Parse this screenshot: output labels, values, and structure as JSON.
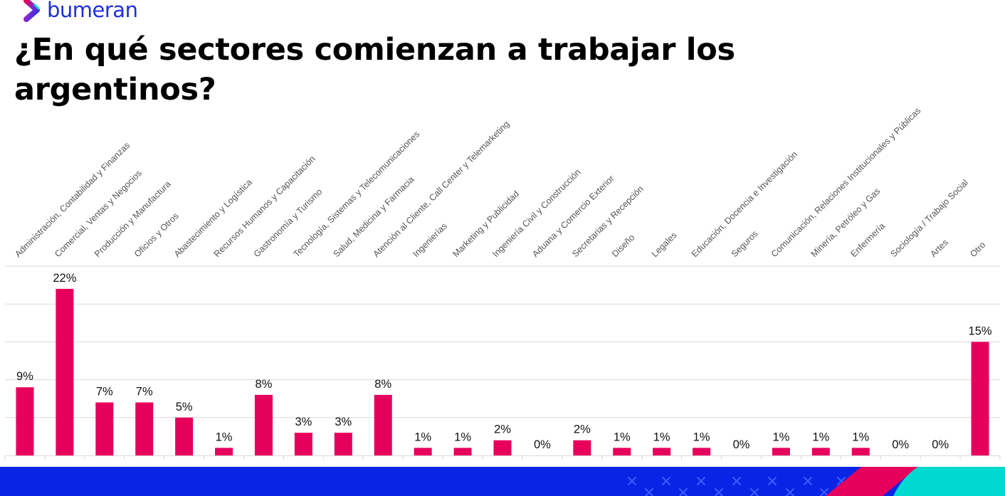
{
  "brand": {
    "name": "bumeran",
    "logo_icon": "chevron-right-icon",
    "colors": {
      "primary": "#1f2fd8",
      "accent": "#e6005c",
      "teal": "#00d9cf",
      "footer": "#0a24e6"
    }
  },
  "header": {
    "title": "¿En qué sectores comienzan a trabajar los argentinos?"
  },
  "footer": {
    "pattern_icon": "cross-pattern-icon"
  },
  "chart_data": {
    "type": "bar",
    "title": "¿En qué sectores comienzan a trabajar los argentinos?",
    "xlabel": "",
    "ylabel": "",
    "ylim": [
      0,
      25
    ],
    "grid": true,
    "legend": "none",
    "bar_color": "#e6005c",
    "value_suffix": "%",
    "categories": [
      "Administración, Contabilidad y Finanzas",
      "Comercial, Ventas y Negocios",
      "Producción y Manufactura",
      "Oficios y Otros",
      "Abastecimiento y Logística",
      "Recursos Humanos y Capacitación",
      "Gastronomía y Turismo",
      "Tecnología, Sistemas y Telecomunicaciones",
      "Salud, Medicina y Farmacia",
      "Atención al Cliente, Call Center y Telemarketing",
      "Ingenierías",
      "Marketing y Publicidad",
      "Ingeniería Civil y Construcción",
      "Aduana y Comercio Exterior",
      "Secretarias y Recepción",
      "Diseño",
      "Legales",
      "Educación, Docencia e Investigación",
      "Seguros",
      "Comunicación, Relaciones Institucionales y Públicas",
      "Minería, Petróleo y Gas",
      "Enfermería",
      "Sociología / Trabajo Social",
      "Artes",
      "Otro"
    ],
    "values": [
      9,
      22,
      7,
      7,
      5,
      1,
      8,
      3,
      3,
      8,
      1,
      1,
      2,
      0,
      2,
      1,
      1,
      1,
      0,
      1,
      1,
      1,
      0,
      0,
      15
    ],
    "labels": [
      "9%",
      "22%",
      "7%",
      "7%",
      "5%",
      "1%",
      "8%",
      "3%",
      "3%",
      "8%",
      "1%",
      "1%",
      "2%",
      "0%",
      "2%",
      "1%",
      "1%",
      "1%",
      "0%",
      "1%",
      "1%",
      "1%",
      "0%",
      "0%",
      "15%"
    ]
  }
}
